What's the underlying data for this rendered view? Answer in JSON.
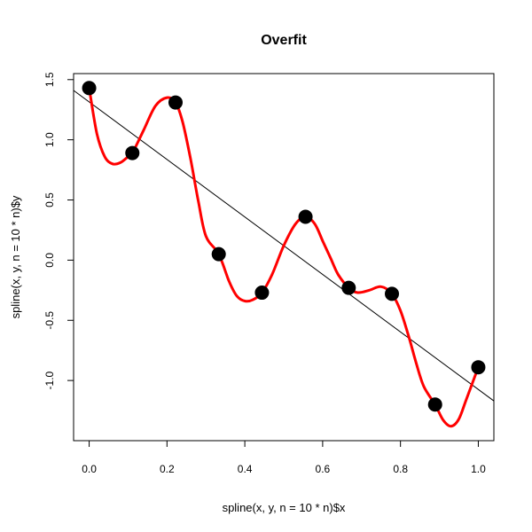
{
  "chart_data": {
    "type": "scatter",
    "title": "Overfit",
    "xlabel": "spline(x, y, n = 10 * n)$x",
    "ylabel": "spline(x, y, n = 10 * n)$y",
    "xlim": [
      -0.04,
      1.04
    ],
    "ylim": [
      -1.5,
      1.55
    ],
    "xticks": [
      0.0,
      0.2,
      0.4,
      0.6,
      0.8,
      1.0
    ],
    "xtick_labels": [
      "0.0",
      "0.2",
      "0.4",
      "0.6",
      "0.8",
      "1.0"
    ],
    "yticks": [
      -1.0,
      -0.5,
      0.0,
      0.5,
      1.0,
      1.5
    ],
    "ytick_labels": [
      "-1.0",
      "-0.5",
      "0.0",
      "0.5",
      "1.0",
      "1.5"
    ],
    "grid": false,
    "colors": {
      "points": "#000000",
      "spline": "#ff0000",
      "fit_line": "#000000"
    },
    "points": {
      "x": [
        0.0,
        0.111,
        0.222,
        0.333,
        0.444,
        0.556,
        0.667,
        0.778,
        0.889,
        1.0
      ],
      "y": [
        1.43,
        0.89,
        1.31,
        0.05,
        -0.27,
        0.36,
        -0.23,
        -0.28,
        -1.2,
        -0.89
      ]
    },
    "spline": {
      "x": [
        0.0,
        0.02,
        0.04,
        0.06,
        0.08,
        0.1,
        0.111,
        0.14,
        0.17,
        0.2,
        0.222,
        0.24,
        0.26,
        0.28,
        0.3,
        0.333,
        0.36,
        0.38,
        0.4,
        0.42,
        0.444,
        0.47,
        0.5,
        0.53,
        0.556,
        0.58,
        0.6,
        0.62,
        0.64,
        0.667,
        0.69,
        0.72,
        0.75,
        0.778,
        0.8,
        0.82,
        0.84,
        0.86,
        0.889,
        0.91,
        0.93,
        0.95,
        0.97,
        1.0
      ],
      "y": [
        1.43,
        1.05,
        0.86,
        0.8,
        0.81,
        0.86,
        0.89,
        1.08,
        1.28,
        1.35,
        1.31,
        1.15,
        0.85,
        0.5,
        0.2,
        0.05,
        -0.18,
        -0.3,
        -0.34,
        -0.33,
        -0.27,
        -0.12,
        0.12,
        0.3,
        0.36,
        0.3,
        0.16,
        0.02,
        -0.12,
        -0.23,
        -0.27,
        -0.25,
        -0.22,
        -0.28,
        -0.42,
        -0.62,
        -0.85,
        -1.05,
        -1.2,
        -1.33,
        -1.38,
        -1.32,
        -1.15,
        -0.89
      ]
    },
    "fit_line": {
      "x": [
        -0.04,
        1.04
      ],
      "y": [
        1.41,
        -1.17
      ]
    }
  }
}
